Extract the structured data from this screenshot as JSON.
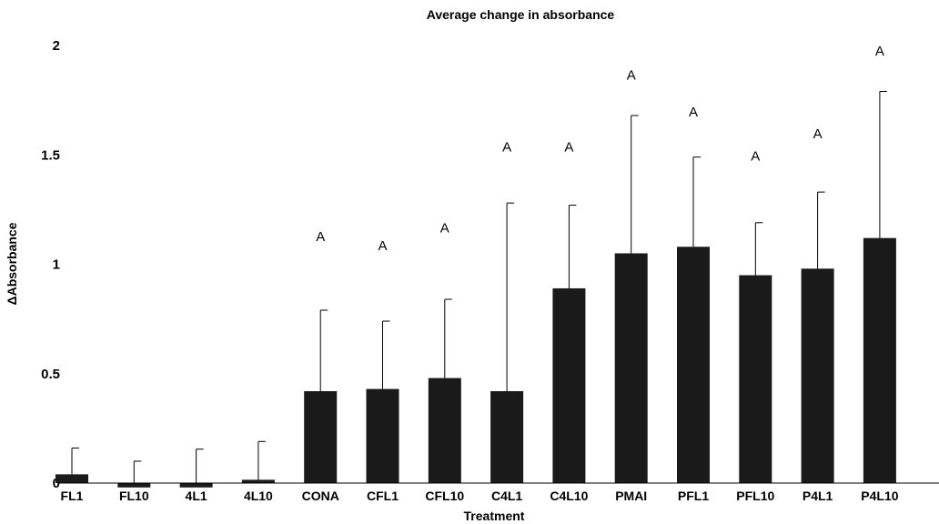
{
  "chart_data": {
    "type": "bar",
    "title": "Average change in absorbance",
    "xlabel": "Treatment",
    "ylabel": "ΔAbsorbance",
    "ylim": [
      0,
      2
    ],
    "yticks": [
      "0",
      "0.5",
      "1",
      "1.5",
      "2"
    ],
    "grid": false,
    "categories": [
      "FL1",
      "FL10",
      "4L1",
      "4L10",
      "CONA",
      "CFL1",
      "CFL10",
      "C4L1",
      "C4L10",
      "PMAI",
      "PFL1",
      "PFL10",
      "P4L1",
      "P4L10"
    ],
    "values": [
      0.04,
      -0.02,
      -0.02,
      0.015,
      0.42,
      0.43,
      0.48,
      0.42,
      0.89,
      1.05,
      1.08,
      0.95,
      0.98,
      1.12
    ],
    "error_upper": [
      0.16,
      0.1,
      0.155,
      0.19,
      0.79,
      0.74,
      0.84,
      1.28,
      1.27,
      1.68,
      1.49,
      1.19,
      1.33,
      1.79
    ],
    "significance_labels": [
      "",
      "",
      "",
      "",
      "A",
      "A",
      "A",
      "A",
      "A",
      "A",
      "A",
      "A",
      "A",
      "A"
    ],
    "significance_y": [
      null,
      null,
      null,
      null,
      1.13,
      1.09,
      1.17,
      1.54,
      1.54,
      1.87,
      1.7,
      1.5,
      1.6,
      1.98
    ],
    "bar_color": "#1a1a1a"
  }
}
